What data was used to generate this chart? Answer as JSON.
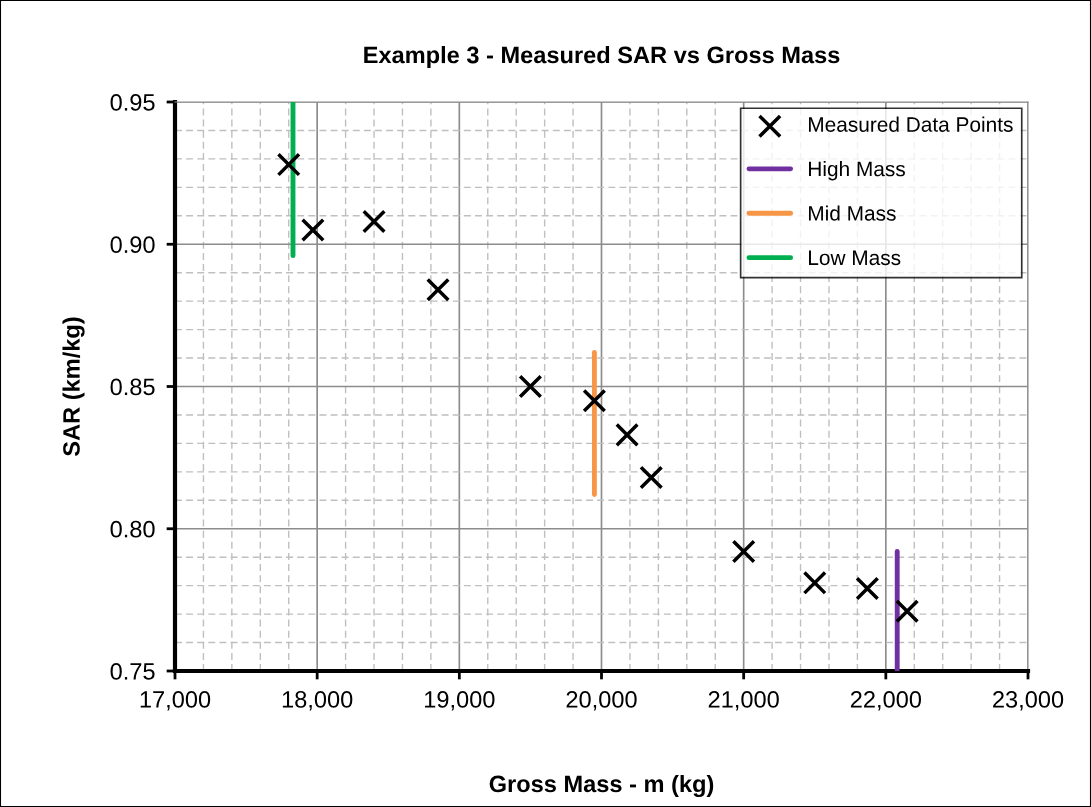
{
  "chart_data": {
    "type": "scatter",
    "title": "Example 3 - Measured SAR vs Gross Mass",
    "xlabel": "Gross Mass - m (kg)",
    "ylabel": "SAR (km/kg)",
    "series": [
      {
        "name": "Measured Data Points",
        "color": "#000000",
        "marker": "cross",
        "x": [
          17800,
          17970,
          18400,
          18850,
          19500,
          19950,
          20180,
          20350,
          21000,
          21500,
          21870,
          22150
        ],
        "values": [
          0.928,
          0.905,
          0.908,
          0.884,
          0.85,
          0.845,
          0.833,
          0.818,
          0.792,
          0.781,
          0.779,
          0.771
        ]
      },
      {
        "name": "High Mass",
        "type": "line",
        "color": "#7030a0",
        "x": [
          22080,
          22080
        ],
        "values": [
          0.75,
          0.792
        ]
      },
      {
        "name": "Mid Mass",
        "type": "line",
        "color": "#f79646",
        "x": [
          19950,
          19950
        ],
        "values": [
          0.812,
          0.862
        ]
      },
      {
        "name": "Low Mass",
        "type": "line",
        "color": "#00b050",
        "x": [
          17830,
          17830
        ],
        "values": [
          0.896,
          0.95
        ]
      }
    ],
    "xlim": [
      17000,
      23000
    ],
    "ylim": [
      0.75,
      0.95
    ],
    "xticks": [
      {
        "value": 17000,
        "label": "17,000"
      },
      {
        "value": 18000,
        "label": "18,000"
      },
      {
        "value": 19000,
        "label": "19,000"
      },
      {
        "value": 20000,
        "label": "20,000"
      },
      {
        "value": 21000,
        "label": "21,000"
      },
      {
        "value": 22000,
        "label": "22,000"
      },
      {
        "value": 23000,
        "label": "23,000"
      }
    ],
    "yticks": [
      {
        "value": 0.75,
        "label": "0.75"
      },
      {
        "value": 0.8,
        "label": "0.80"
      },
      {
        "value": 0.85,
        "label": "0.85"
      },
      {
        "value": 0.9,
        "label": "0.90"
      },
      {
        "value": 0.95,
        "label": "0.95"
      }
    ],
    "grid": true,
    "legend": "top right"
  }
}
